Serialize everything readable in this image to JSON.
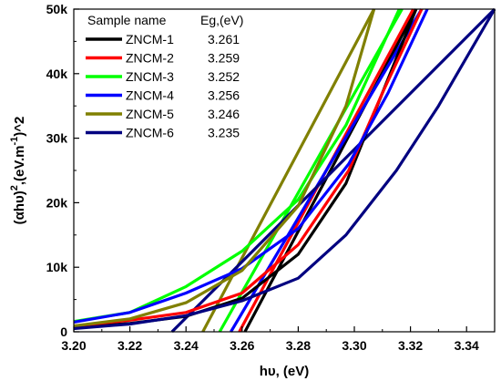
{
  "chart_data": {
    "type": "line",
    "title": "",
    "xlabel": "hυ, (eV)",
    "ylabel_parts": {
      "a": "(αhυ)",
      "b": "2",
      "c": ",(eV.m",
      "d": "-1",
      "e": ")^2"
    },
    "xlim": [
      3.2,
      3.35
    ],
    "ylim": [
      0,
      50000
    ],
    "x_ticks": [
      3.2,
      3.22,
      3.24,
      3.26,
      3.28,
      3.3,
      3.32,
      3.34
    ],
    "x_tick_labels": [
      "3.20",
      "3.22",
      "3.24",
      "3.26",
      "3.28",
      "3.30",
      "3.32",
      "3.34"
    ],
    "y_ticks": [
      0,
      10000,
      20000,
      30000,
      40000,
      50000
    ],
    "y_tick_labels": [
      "0",
      "10k",
      "20k",
      "30k",
      "40k",
      "50k"
    ],
    "grid": false,
    "legend": {
      "placement": "top-left",
      "header_name": "Sample name",
      "header_value": "Eg,(eV)"
    },
    "series": [
      {
        "name": "ZNCM-1",
        "eg": "3.261",
        "color": "#000000",
        "x": [
          3.2,
          3.22,
          3.24,
          3.26,
          3.28,
          3.297,
          3.31,
          3.322
        ],
        "y": [
          700,
          1300,
          2400,
          5200,
          12000,
          23000,
          37000,
          50000
        ],
        "fit": [
          [
            3.261,
            0
          ],
          [
            3.322,
            50000
          ]
        ]
      },
      {
        "name": "ZNCM-2",
        "eg": "3.259",
        "color": "#ff0000",
        "x": [
          3.2,
          3.22,
          3.24,
          3.26,
          3.28,
          3.298,
          3.31,
          3.324
        ],
        "y": [
          900,
          1800,
          3000,
          6000,
          13500,
          25000,
          37000,
          50000
        ],
        "fit": [
          [
            3.259,
            0
          ],
          [
            3.321,
            50000
          ]
        ]
      },
      {
        "name": "ZNCM-3",
        "eg": "3.252",
        "color": "#00ff00",
        "x": [
          3.2,
          3.22,
          3.24,
          3.26,
          3.28,
          3.297,
          3.316
        ],
        "y": [
          1600,
          3000,
          7000,
          12500,
          20500,
          32000,
          50000
        ],
        "fit": [
          [
            3.252,
            0
          ],
          [
            3.317,
            50000
          ]
        ]
      },
      {
        "name": "ZNCM-4",
        "eg": "3.256",
        "color": "#0000ff",
        "x": [
          3.2,
          3.22,
          3.24,
          3.26,
          3.28,
          3.298,
          3.312,
          3.326
        ],
        "y": [
          1500,
          3000,
          6000,
          9800,
          16000,
          26000,
          37000,
          50000
        ],
        "fit": [
          [
            3.256,
            0
          ],
          [
            3.324,
            50000
          ]
        ]
      },
      {
        "name": "ZNCM-5",
        "eg": "3.246",
        "color": "#808000",
        "x": [
          3.2,
          3.22,
          3.24,
          3.26,
          3.28,
          3.297,
          3.307
        ],
        "y": [
          900,
          2000,
          4500,
          9500,
          19500,
          35000,
          50000
        ],
        "fit": [
          [
            3.246,
            0
          ],
          [
            3.307,
            50000
          ]
        ]
      },
      {
        "name": "ZNCM-6",
        "eg": "3.235",
        "color": "#000080",
        "x": [
          3.2,
          3.22,
          3.24,
          3.26,
          3.28,
          3.297,
          3.315,
          3.33,
          3.35
        ],
        "y": [
          500,
          1200,
          2500,
          4800,
          8300,
          15000,
          25000,
          35000,
          50000
        ],
        "fit": [
          [
            3.235,
            0
          ],
          [
            3.35,
            50000
          ]
        ]
      }
    ]
  }
}
